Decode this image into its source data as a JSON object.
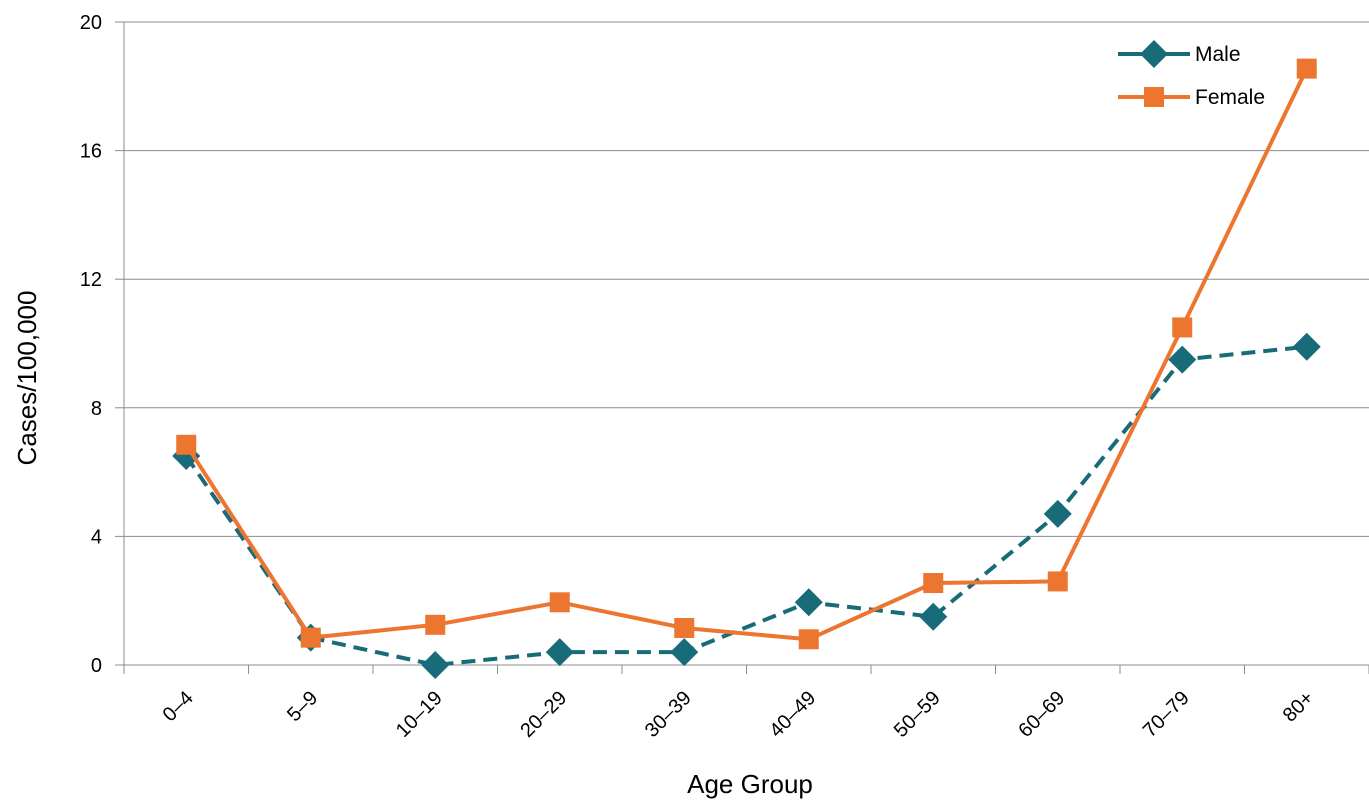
{
  "chart_data": {
    "type": "line",
    "title": "",
    "xlabel": "Age Group",
    "ylabel": "Cases/100,000",
    "categories": [
      "0–4",
      "5–9",
      "10–19",
      "20–29",
      "30–39",
      "40–49",
      "50–59",
      "60–69",
      "70–79",
      "80+"
    ],
    "y_ticks": [
      "0",
      "4",
      "8",
      "12",
      "16",
      "20"
    ],
    "ylim": [
      0,
      20
    ],
    "grid": "horizontal",
    "legend_position": "top-right",
    "series": [
      {
        "name": "Male",
        "values": [
          6.5,
          0.85,
          0.0,
          0.4,
          0.4,
          1.95,
          1.5,
          4.7,
          9.5,
          9.9
        ],
        "color": "#186b79",
        "line_style": "dashed",
        "marker": "diamond"
      },
      {
        "name": "Female",
        "values": [
          6.85,
          0.85,
          1.25,
          1.95,
          1.15,
          0.8,
          2.55,
          2.6,
          10.5,
          18.55
        ],
        "color": "#ec7530",
        "line_style": "solid",
        "marker": "square"
      }
    ]
  }
}
